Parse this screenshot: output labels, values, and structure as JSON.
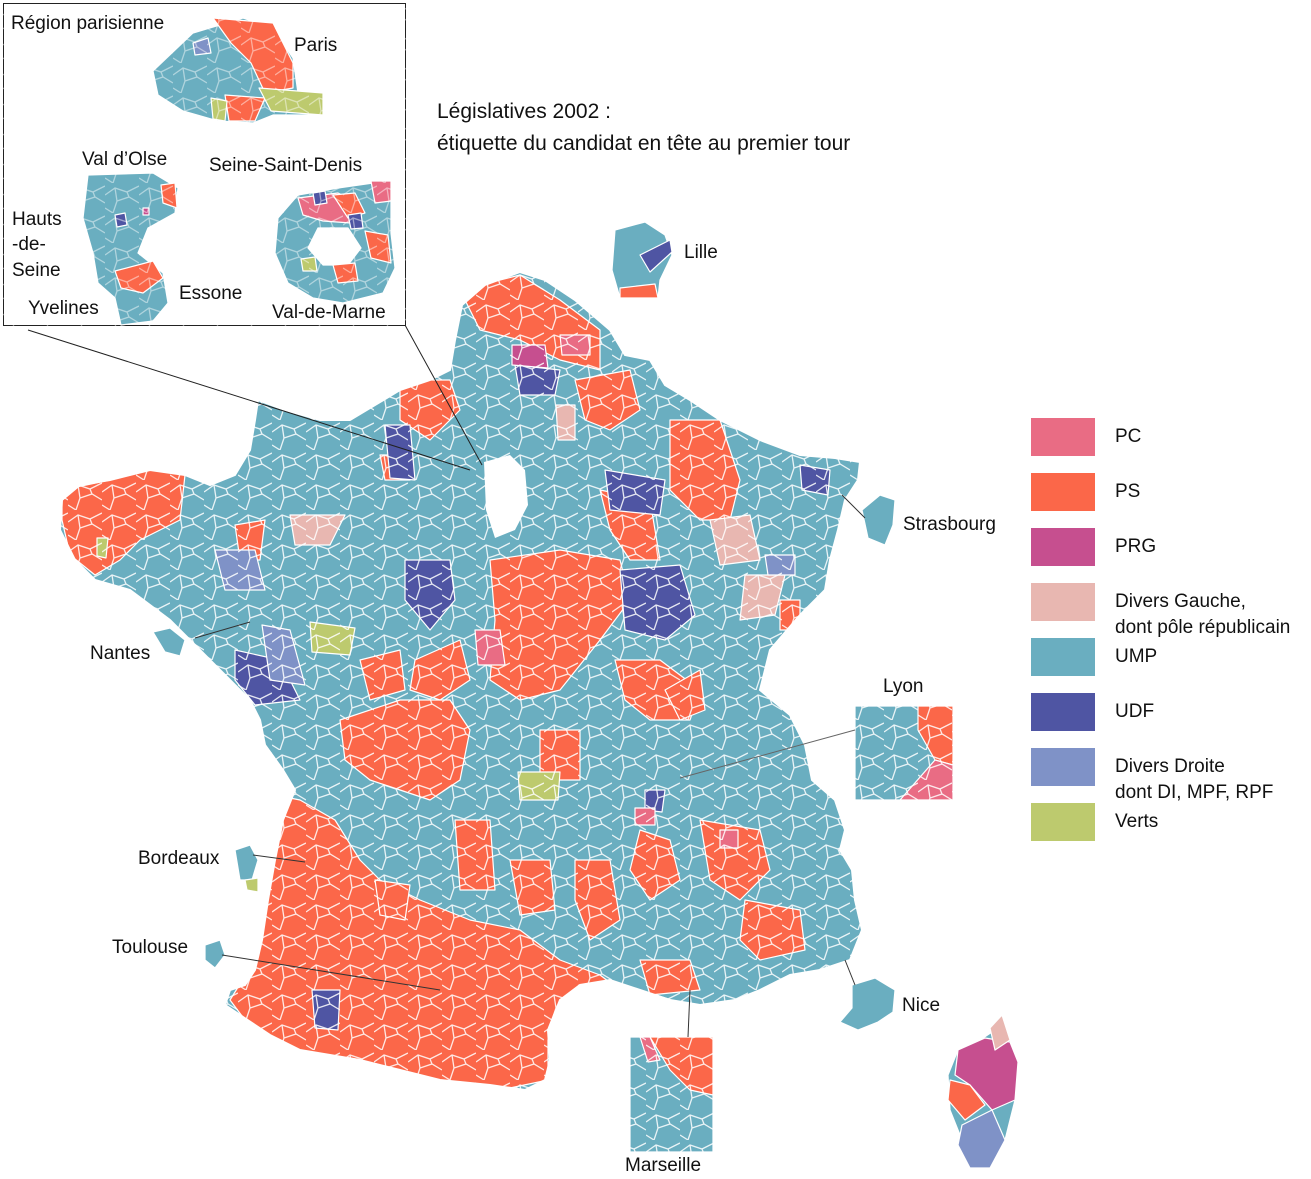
{
  "title": {
    "line1": "Législatives 2002 :",
    "line2": "étiquette du candidat en tête au premier tour"
  },
  "inset": {
    "heading": "Région parisienne",
    "labels": {
      "paris": "Paris",
      "val_doise": "Val d’Olse",
      "seine_saint_denis": "Seine-Saint-Denis",
      "hauts_de_seine_1": "Hauts",
      "hauts_de_seine_2": "-de-",
      "hauts_de_seine_3": "Seine",
      "essone": "Essone",
      "yvelines": "Yvelines",
      "val_de_marne": "Val-de-Marne"
    }
  },
  "cities": {
    "lille": "Lille",
    "strasbourg": "Strasbourg",
    "nantes": "Nantes",
    "lyon": "Lyon",
    "bordeaux": "Bordeaux",
    "toulouse": "Toulouse",
    "nice": "Nice",
    "marseille": "Marseille"
  },
  "legend": [
    {
      "label": "PC",
      "color": "#e96c84"
    },
    {
      "label": "PS",
      "color": "#fb6749"
    },
    {
      "label": "PRG",
      "color": "#c64f8f"
    },
    {
      "label": "Divers Gauche,",
      "label2": "dont pôle républicain",
      "color": "#e8b7b1"
    },
    {
      "label": "UMP",
      "color": "#6aaec0"
    },
    {
      "label": "UDF",
      "color": "#4f55a3"
    },
    {
      "label": "Divers Droite",
      "label2": "dont DI, MPF, RPF",
      "color": "#7f92c7"
    },
    {
      "label": "Verts",
      "color": "#bdca6e"
    }
  ],
  "colors": {
    "pc": "#e96c84",
    "ps": "#fb6749",
    "prg": "#c64f8f",
    "dvg": "#e8b7b1",
    "ump": "#6aaec0",
    "udf": "#4f55a3",
    "dvd": "#7f92c7",
    "verts": "#bdca6e",
    "border": "#ffffff"
  }
}
